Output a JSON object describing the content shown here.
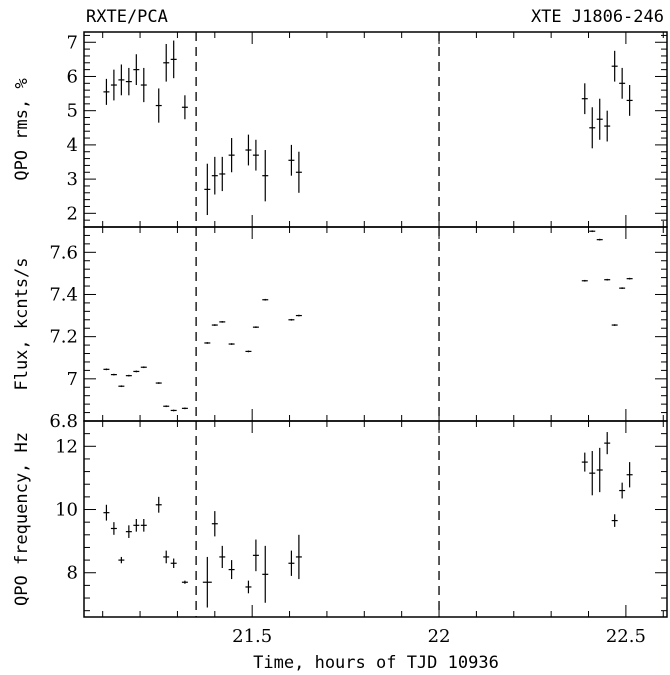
{
  "header": {
    "left": "RXTE/PCA",
    "right": "XTE J1806-246"
  },
  "chart_data": {
    "type": "scatter",
    "xlabel": "Time, hours of TJD 10936",
    "xlim": [
      21.05,
      22.61
    ],
    "x_ticks": [
      "21.5",
      "22",
      "22.5"
    ],
    "vertical_dashed_lines_x": [
      21.35,
      22.0
    ],
    "panels": [
      {
        "id": "rms",
        "ylabel": "QPO rms, %",
        "ylim": [
          1.6,
          7.3
        ],
        "y_ticks": [
          "2",
          "3",
          "4",
          "5",
          "6",
          "7"
        ],
        "points": [
          {
            "x": 21.11,
            "y": 5.55,
            "xerr": 0.008,
            "yerr": 0.38
          },
          {
            "x": 21.13,
            "y": 5.75,
            "xerr": 0.008,
            "yerr": 0.45
          },
          {
            "x": 21.15,
            "y": 5.9,
            "xerr": 0.008,
            "yerr": 0.45
          },
          {
            "x": 21.17,
            "y": 5.85,
            "xerr": 0.008,
            "yerr": 0.4
          },
          {
            "x": 21.19,
            "y": 6.2,
            "xerr": 0.008,
            "yerr": 0.45
          },
          {
            "x": 21.21,
            "y": 5.75,
            "xerr": 0.008,
            "yerr": 0.5
          },
          {
            "x": 21.25,
            "y": 5.15,
            "xerr": 0.008,
            "yerr": 0.5
          },
          {
            "x": 21.27,
            "y": 6.4,
            "xerr": 0.008,
            "yerr": 0.55
          },
          {
            "x": 21.29,
            "y": 6.5,
            "xerr": 0.008,
            "yerr": 0.55
          },
          {
            "x": 21.32,
            "y": 5.1,
            "xerr": 0.008,
            "yerr": 0.35
          },
          {
            "x": 21.38,
            "y": 2.7,
            "xerr": 0.008,
            "yerr": 0.75
          },
          {
            "x": 21.4,
            "y": 3.1,
            "xerr": 0.008,
            "yerr": 0.55
          },
          {
            "x": 21.42,
            "y": 3.15,
            "xerr": 0.008,
            "yerr": 0.5
          },
          {
            "x": 21.445,
            "y": 3.7,
            "xerr": 0.008,
            "yerr": 0.5
          },
          {
            "x": 21.49,
            "y": 3.85,
            "xerr": 0.008,
            "yerr": 0.45
          },
          {
            "x": 21.51,
            "y": 3.7,
            "xerr": 0.008,
            "yerr": 0.45
          },
          {
            "x": 21.535,
            "y": 3.1,
            "xerr": 0.008,
            "yerr": 0.75
          },
          {
            "x": 21.605,
            "y": 3.55,
            "xerr": 0.008,
            "yerr": 0.45
          },
          {
            "x": 21.625,
            "y": 3.2,
            "xerr": 0.008,
            "yerr": 0.6
          },
          {
            "x": 22.39,
            "y": 5.35,
            "xerr": 0.008,
            "yerr": 0.45
          },
          {
            "x": 22.41,
            "y": 4.5,
            "xerr": 0.008,
            "yerr": 0.6
          },
          {
            "x": 22.43,
            "y": 4.75,
            "xerr": 0.008,
            "yerr": 0.6
          },
          {
            "x": 22.45,
            "y": 4.55,
            "xerr": 0.008,
            "yerr": 0.45
          },
          {
            "x": 22.47,
            "y": 6.3,
            "xerr": 0.008,
            "yerr": 0.45
          },
          {
            "x": 22.49,
            "y": 5.8,
            "xerr": 0.008,
            "yerr": 0.45
          },
          {
            "x": 22.51,
            "y": 5.3,
            "xerr": 0.008,
            "yerr": 0.45
          }
        ]
      },
      {
        "id": "flux",
        "ylabel": "Flux, kcnts/s",
        "ylim": [
          6.8,
          7.72
        ],
        "y_ticks": [
          "6.8",
          "7",
          "7.2",
          "7.4",
          "7.6"
        ],
        "points": [
          {
            "x": 21.11,
            "y": 7.045,
            "xerr": 0.008,
            "yerr": 0.004
          },
          {
            "x": 21.13,
            "y": 7.02,
            "xerr": 0.008,
            "yerr": 0.004
          },
          {
            "x": 21.15,
            "y": 6.965,
            "xerr": 0.008,
            "yerr": 0.004
          },
          {
            "x": 21.17,
            "y": 7.015,
            "xerr": 0.008,
            "yerr": 0.004
          },
          {
            "x": 21.19,
            "y": 7.035,
            "xerr": 0.008,
            "yerr": 0.004
          },
          {
            "x": 21.21,
            "y": 7.055,
            "xerr": 0.008,
            "yerr": 0.004
          },
          {
            "x": 21.25,
            "y": 6.98,
            "xerr": 0.008,
            "yerr": 0.004
          },
          {
            "x": 21.27,
            "y": 6.87,
            "xerr": 0.008,
            "yerr": 0.004
          },
          {
            "x": 21.29,
            "y": 6.85,
            "xerr": 0.008,
            "yerr": 0.004
          },
          {
            "x": 21.32,
            "y": 6.86,
            "xerr": 0.008,
            "yerr": 0.004
          },
          {
            "x": 21.38,
            "y": 7.17,
            "xerr": 0.008,
            "yerr": 0.004
          },
          {
            "x": 21.4,
            "y": 7.255,
            "xerr": 0.008,
            "yerr": 0.004
          },
          {
            "x": 21.42,
            "y": 7.27,
            "xerr": 0.008,
            "yerr": 0.004
          },
          {
            "x": 21.445,
            "y": 7.165,
            "xerr": 0.008,
            "yerr": 0.004
          },
          {
            "x": 21.49,
            "y": 7.13,
            "xerr": 0.008,
            "yerr": 0.004
          },
          {
            "x": 21.51,
            "y": 7.245,
            "xerr": 0.008,
            "yerr": 0.004
          },
          {
            "x": 21.535,
            "y": 7.375,
            "xerr": 0.008,
            "yerr": 0.004
          },
          {
            "x": 21.605,
            "y": 7.28,
            "xerr": 0.008,
            "yerr": 0.004
          },
          {
            "x": 21.625,
            "y": 7.3,
            "xerr": 0.008,
            "yerr": 0.004
          },
          {
            "x": 22.39,
            "y": 7.465,
            "xerr": 0.008,
            "yerr": 0.004
          },
          {
            "x": 22.41,
            "y": 7.7,
            "xerr": 0.008,
            "yerr": 0.004
          },
          {
            "x": 22.43,
            "y": 7.66,
            "xerr": 0.008,
            "yerr": 0.004
          },
          {
            "x": 22.45,
            "y": 7.47,
            "xerr": 0.008,
            "yerr": 0.004
          },
          {
            "x": 22.47,
            "y": 7.255,
            "xerr": 0.008,
            "yerr": 0.004
          },
          {
            "x": 22.49,
            "y": 7.43,
            "xerr": 0.008,
            "yerr": 0.004
          },
          {
            "x": 22.51,
            "y": 7.475,
            "xerr": 0.008,
            "yerr": 0.004
          }
        ]
      },
      {
        "id": "freq",
        "ylabel": "QPO frequency, Hz",
        "ylim": [
          6.6,
          12.8
        ],
        "y_ticks": [
          "8",
          "10",
          "12"
        ],
        "points": [
          {
            "x": 21.11,
            "y": 9.9,
            "xerr": 0.008,
            "yerr": 0.25
          },
          {
            "x": 21.13,
            "y": 9.4,
            "xerr": 0.008,
            "yerr": 0.2
          },
          {
            "x": 21.15,
            "y": 8.4,
            "xerr": 0.008,
            "yerr": 0.1
          },
          {
            "x": 21.17,
            "y": 9.3,
            "xerr": 0.008,
            "yerr": 0.2
          },
          {
            "x": 21.19,
            "y": 9.5,
            "xerr": 0.008,
            "yerr": 0.2
          },
          {
            "x": 21.21,
            "y": 9.5,
            "xerr": 0.008,
            "yerr": 0.2
          },
          {
            "x": 21.25,
            "y": 10.15,
            "xerr": 0.008,
            "yerr": 0.25
          },
          {
            "x": 21.27,
            "y": 8.5,
            "xerr": 0.008,
            "yerr": 0.2
          },
          {
            "x": 21.29,
            "y": 8.3,
            "xerr": 0.008,
            "yerr": 0.15
          },
          {
            "x": 21.32,
            "y": 7.7,
            "xerr": 0.008,
            "yerr": 0.05
          },
          {
            "x": 21.38,
            "y": 7.7,
            "xerr": 0.012,
            "yerr": 0.8
          },
          {
            "x": 21.4,
            "y": 9.55,
            "xerr": 0.008,
            "yerr": 0.4
          },
          {
            "x": 21.42,
            "y": 8.5,
            "xerr": 0.008,
            "yerr": 0.35
          },
          {
            "x": 21.445,
            "y": 8.1,
            "xerr": 0.008,
            "yerr": 0.3
          },
          {
            "x": 21.49,
            "y": 7.55,
            "xerr": 0.008,
            "yerr": 0.2
          },
          {
            "x": 21.51,
            "y": 8.55,
            "xerr": 0.008,
            "yerr": 0.5
          },
          {
            "x": 21.535,
            "y": 7.95,
            "xerr": 0.008,
            "yerr": 0.9
          },
          {
            "x": 21.605,
            "y": 8.3,
            "xerr": 0.008,
            "yerr": 0.4
          },
          {
            "x": 21.625,
            "y": 8.5,
            "xerr": 0.008,
            "yerr": 0.7
          },
          {
            "x": 22.39,
            "y": 11.5,
            "xerr": 0.008,
            "yerr": 0.3
          },
          {
            "x": 22.41,
            "y": 11.15,
            "xerr": 0.008,
            "yerr": 0.7
          },
          {
            "x": 22.43,
            "y": 11.25,
            "xerr": 0.008,
            "yerr": 0.7
          },
          {
            "x": 22.45,
            "y": 12.1,
            "xerr": 0.008,
            "yerr": 0.35
          },
          {
            "x": 22.47,
            "y": 9.65,
            "xerr": 0.008,
            "yerr": 0.2
          },
          {
            "x": 22.49,
            "y": 10.6,
            "xerr": 0.008,
            "yerr": 0.25
          },
          {
            "x": 22.51,
            "y": 11.1,
            "xerr": 0.008,
            "yerr": 0.4
          }
        ]
      }
    ]
  }
}
